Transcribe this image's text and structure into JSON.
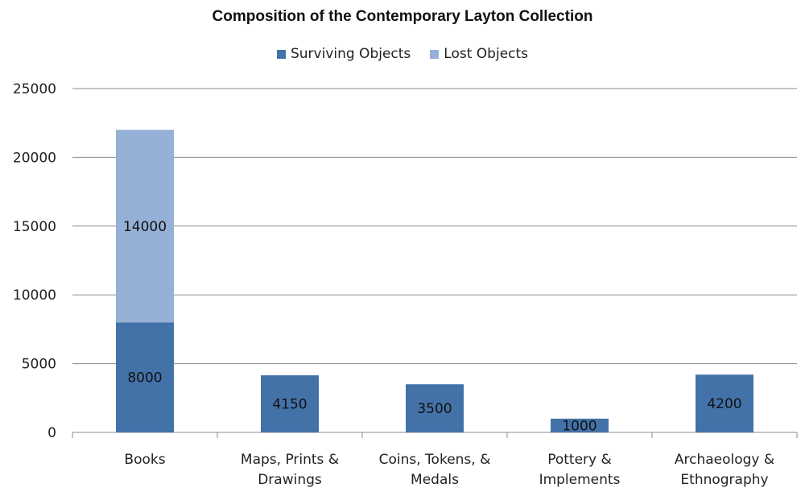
{
  "chart_data": {
    "type": "bar",
    "stacked": true,
    "title": "Composition of the Contemporary Layton Collection",
    "categories": [
      [
        "Books"
      ],
      [
        "Maps, Prints &",
        "Drawings"
      ],
      [
        "Coins, Tokens, &",
        "Medals"
      ],
      [
        "Pottery &",
        "Implements"
      ],
      [
        "Archaeology &",
        "Ethnography"
      ]
    ],
    "series": [
      {
        "name": "Surviving Objects",
        "color": "#4372a8",
        "values": [
          8000,
          4150,
          3500,
          1000,
          4200
        ],
        "labels": [
          "8000",
          "4150",
          "3500",
          "1000",
          "4200"
        ]
      },
      {
        "name": "Lost Objects",
        "color": "#95b0d6",
        "values": [
          14000,
          0,
          0,
          0,
          0
        ],
        "labels": [
          "14000",
          "",
          "",
          "",
          ""
        ]
      }
    ],
    "ylim": [
      0,
      25000
    ],
    "yticks": [
      "0",
      "5000",
      "10000",
      "15000",
      "20000",
      "25000"
    ],
    "grid": true,
    "legend_position": "top"
  }
}
